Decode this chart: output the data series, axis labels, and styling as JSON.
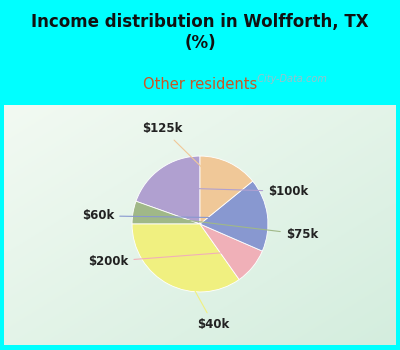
{
  "title": "Income distribution in Wolfforth, TX\n(%)",
  "subtitle": "Other residents",
  "title_color": "#111111",
  "subtitle_color": "#cc5522",
  "background_cyan": "#00ffff",
  "labels": [
    "$100k",
    "$75k",
    "$40k",
    "$200k",
    "$60k",
    "$125k"
  ],
  "sizes": [
    18,
    5,
    32,
    8,
    16,
    13
  ],
  "colors": [
    "#b0a0d0",
    "#a0b888",
    "#f0f080",
    "#f0b0b8",
    "#8898d0",
    "#f0c898"
  ],
  "startangle": 90,
  "label_color": "#222222",
  "label_fontsize": 8.5,
  "watermark": "  City-Data.com",
  "chart_bg_top_left": "#e8f8f0",
  "chart_bg_bottom_right": "#c8e8d8"
}
